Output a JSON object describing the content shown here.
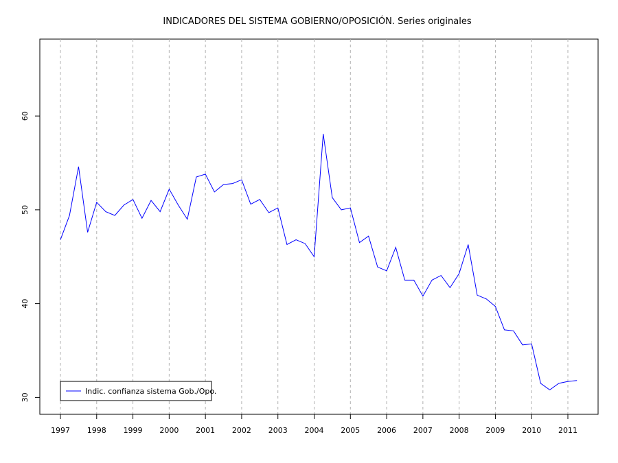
{
  "chart_data": {
    "type": "line",
    "title": "INDICADORES DEL SISTEMA GOBIERNO/OPOSICIÓN. Series originales",
    "xlabel": "",
    "ylabel": "",
    "xlim": [
      1997,
      2011.7
    ],
    "ylim": [
      28.2,
      68.2
    ],
    "yticks": [
      30,
      40,
      50,
      60
    ],
    "xticks": [
      "1997",
      "1998",
      "1999",
      "2000",
      "2001",
      "2002",
      "2003",
      "2004",
      "2005",
      "2006",
      "2007",
      "2008",
      "2009",
      "2010",
      "2011"
    ],
    "vertical_gridlines": "dashed at each year",
    "legend": {
      "position": "bottom-left",
      "entries": [
        "Indic. confianza sistema Gob./Opo."
      ]
    },
    "series": [
      {
        "name": "Indic. confianza sistema Gob./Opo.",
        "color": "#0000ff",
        "x": [
          1997.0,
          1997.25,
          1997.5,
          1997.75,
          1998.0,
          1998.25,
          1998.5,
          1998.75,
          1999.0,
          1999.25,
          1999.5,
          1999.75,
          2000.0,
          2000.25,
          2000.5,
          2000.75,
          2001.0,
          2001.25,
          2001.5,
          2001.75,
          2002.0,
          2002.25,
          2002.5,
          2002.75,
          2003.0,
          2003.25,
          2003.5,
          2003.75,
          2004.0,
          2004.25,
          2004.5,
          2004.75,
          2005.0,
          2005.25,
          2005.5,
          2005.75,
          2006.0,
          2006.25,
          2006.5,
          2006.75,
          2007.0,
          2007.25,
          2007.5,
          2007.75,
          2008.0,
          2008.25,
          2008.5,
          2008.75,
          2009.0,
          2009.25,
          2009.5,
          2009.75,
          2010.0,
          2010.25,
          2010.5,
          2010.75,
          2011.0,
          2011.25
        ],
        "values": [
          46.8,
          49.4,
          54.6,
          47.6,
          50.8,
          49.8,
          49.4,
          50.5,
          51.1,
          49.1,
          51.0,
          49.8,
          52.2,
          50.5,
          49.0,
          53.5,
          53.8,
          51.9,
          52.7,
          52.8,
          53.2,
          50.6,
          51.1,
          49.7,
          50.2,
          46.3,
          46.8,
          46.4,
          45.0,
          58.1,
          51.3,
          50.0,
          50.2,
          46.5,
          47.2,
          43.9,
          43.5,
          46.0,
          42.5,
          42.5,
          40.8,
          42.5,
          43.0,
          41.7,
          43.2,
          46.3,
          40.9,
          40.5,
          39.7,
          37.2,
          37.1,
          35.6,
          35.7,
          31.5,
          30.8,
          31.5,
          31.7,
          31.8
        ]
      }
    ]
  }
}
